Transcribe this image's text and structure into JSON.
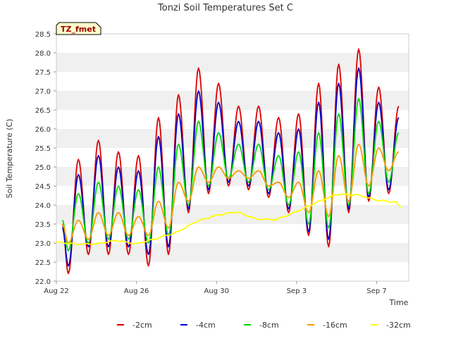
{
  "chart_data": {
    "type": "line",
    "title": "Tonzi Soil Temperatures Set C",
    "xlabel": "Time",
    "ylabel": "Soil Temperature (C)",
    "badge": "TZ_fmet",
    "ylim": [
      22.0,
      28.5
    ],
    "xlim": [
      0,
      17.6
    ],
    "yticks": [
      "22.0",
      "22.5",
      "23.0",
      "23.5",
      "24.0",
      "24.5",
      "25.0",
      "25.5",
      "26.0",
      "26.5",
      "27.0",
      "27.5",
      "28.0",
      "28.5"
    ],
    "xticks": [
      {
        "label": "Aug 22",
        "day": 0
      },
      {
        "label": "Aug 26",
        "day": 4
      },
      {
        "label": "Aug 30",
        "day": 8
      },
      {
        "label": "Sep 3",
        "day": 12
      },
      {
        "label": "Sep 7",
        "day": 16
      }
    ],
    "grid": "horizontal bands",
    "legend_position": "bottom",
    "series": [
      {
        "name": "-2cm",
        "color": "#dd0000",
        "x": [
          0.3,
          0.6,
          1.1,
          1.6,
          2.1,
          2.6,
          3.1,
          3.6,
          4.1,
          4.6,
          5.1,
          5.6,
          6.1,
          6.6,
          7.1,
          7.6,
          8.1,
          8.6,
          9.1,
          9.6,
          10.1,
          10.6,
          11.1,
          11.6,
          12.1,
          12.6,
          13.1,
          13.6,
          14.1,
          14.6,
          15.1,
          15.6,
          16.1,
          16.6,
          17.1
        ],
        "min": [
          22.2,
          22.7,
          22.7,
          22.7,
          22.4,
          22.7,
          23.8,
          24.3,
          24.5,
          24.4,
          24.2,
          23.8,
          23.2,
          22.9,
          23.8,
          24.1,
          24.3,
          24.6,
          25.3,
          24.9,
          24.6,
          24.6,
          24.2,
          23.9
        ],
        "max": [
          23.5,
          25.2,
          25.7,
          25.4,
          25.3,
          26.3,
          26.9,
          27.6,
          27.2,
          26.6,
          26.6,
          26.3,
          26.4,
          27.2,
          27.7,
          28.1,
          27.1,
          26.6,
          26.6,
          26.8,
          25.6
        ]
      },
      {
        "name": "-4cm",
        "color": "#0000cc",
        "x": [
          0.3,
          0.6,
          1.1,
          1.6,
          2.1,
          2.6,
          3.1,
          3.6,
          4.1,
          4.6,
          5.1,
          5.6,
          6.1,
          6.6,
          7.1,
          7.6,
          8.1,
          8.6,
          9.1,
          9.6,
          10.1,
          10.6,
          11.1,
          11.6,
          12.1,
          12.6,
          13.1,
          13.6,
          14.1,
          14.6,
          15.1,
          15.6,
          16.1,
          16.6,
          17.1
        ],
        "min": [
          22.4,
          22.9,
          22.9,
          22.9,
          22.7,
          22.9,
          23.9,
          24.4,
          24.6,
          24.5,
          24.3,
          23.9,
          23.3,
          23.1,
          23.9,
          24.2,
          24.4,
          24.7,
          25.4,
          25.0,
          24.7,
          24.7,
          24.3,
          24.0
        ],
        "max": [
          23.4,
          24.8,
          25.3,
          25.0,
          24.9,
          25.8,
          26.4,
          27.0,
          26.7,
          26.2,
          26.2,
          25.9,
          26.0,
          26.7,
          27.2,
          27.6,
          26.7,
          26.3,
          26.2,
          26.4,
          25.5
        ]
      },
      {
        "name": "-8cm",
        "color": "#00dd00",
        "x": [
          0.3,
          0.6,
          1.1,
          1.6,
          2.1,
          2.6,
          3.1,
          3.6,
          4.1,
          4.6,
          5.1,
          5.6,
          6.1,
          6.6,
          7.1,
          7.6,
          8.1,
          8.6,
          9.1,
          9.6,
          10.1,
          10.6,
          11.1,
          11.6,
          12.1,
          12.6,
          13.1,
          13.6,
          14.1,
          14.6,
          15.1,
          15.6,
          16.1,
          16.6,
          17.1
        ],
        "min": [
          22.8,
          23.0,
          23.1,
          23.1,
          23.0,
          23.2,
          24.0,
          24.5,
          24.7,
          24.6,
          24.4,
          24.0,
          23.5,
          23.4,
          24.0,
          24.3,
          24.6,
          24.9,
          25.5,
          25.2,
          24.9,
          24.8,
          24.4,
          24.2
        ],
        "max": [
          23.6,
          24.3,
          24.6,
          24.5,
          24.4,
          25.0,
          25.6,
          26.2,
          25.9,
          25.6,
          25.6,
          25.3,
          25.4,
          25.9,
          26.4,
          26.8,
          26.2,
          25.9,
          25.8,
          25.8,
          25.0
        ]
      },
      {
        "name": "-16cm",
        "color": "#ff9900",
        "x": [
          0.3,
          0.6,
          1.1,
          1.6,
          2.1,
          2.6,
          3.1,
          3.6,
          4.1,
          4.6,
          5.1,
          5.6,
          6.1,
          6.6,
          7.1,
          7.6,
          8.1,
          8.6,
          9.1,
          9.6,
          10.1,
          10.6,
          11.1,
          11.6,
          12.1,
          12.6,
          13.1,
          13.6,
          14.1,
          14.6,
          15.1,
          15.6,
          16.1,
          16.6,
          17.1
        ],
        "min": [
          23.0,
          23.1,
          23.2,
          23.2,
          23.2,
          23.4,
          24.1,
          24.6,
          24.7,
          24.7,
          24.5,
          24.2,
          23.8,
          23.7,
          24.1,
          24.5,
          24.9,
          25.3,
          25.5,
          25.4,
          25.1,
          25.0,
          24.6,
          24.4
        ],
        "max": [
          23.5,
          23.6,
          23.8,
          23.8,
          23.7,
          24.1,
          24.6,
          25.0,
          25.0,
          24.9,
          24.9,
          24.6,
          24.6,
          24.9,
          25.3,
          25.6,
          25.5,
          25.4,
          25.2,
          25.1,
          24.6
        ]
      },
      {
        "name": "-32cm",
        "color": "#ffff00",
        "x": [
          0,
          1,
          2,
          3,
          4,
          5,
          6,
          7,
          8,
          9,
          10,
          11,
          12,
          13,
          14,
          15,
          16,
          17,
          17.2
        ],
        "values": [
          23.05,
          22.95,
          23.0,
          23.05,
          23.0,
          23.1,
          23.3,
          23.55,
          23.75,
          23.8,
          23.65,
          23.6,
          23.85,
          24.05,
          24.3,
          24.25,
          24.15,
          24.05,
          23.95
        ]
      }
    ]
  }
}
